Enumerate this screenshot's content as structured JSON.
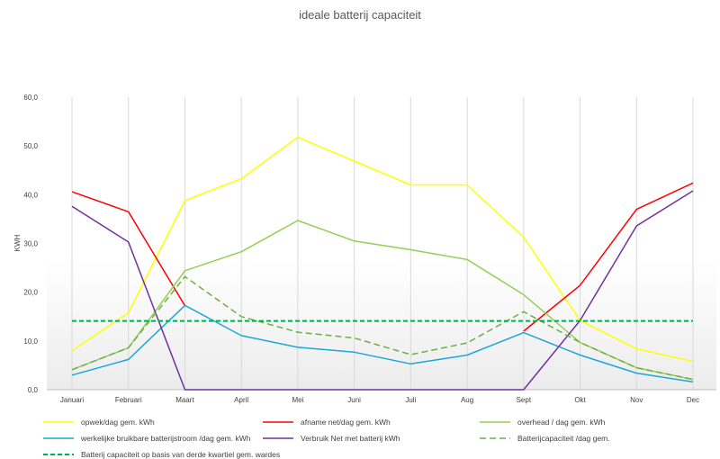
{
  "chart_data": {
    "type": "line",
    "title": "ideale batterij capaciteit",
    "xlabel": "",
    "ylabel": "KWH",
    "ylim": [
      0,
      60
    ],
    "y_ticks": [
      "0,0",
      "10,0",
      "20,0",
      "30,0",
      "40,0",
      "50,0",
      "60,0"
    ],
    "categories": [
      "Januari",
      "Februari",
      "Maart",
      "April",
      "Mei",
      "Juni",
      "Juli",
      "Aug",
      "Sept",
      "Okt",
      "Nov",
      "Dec"
    ],
    "series": [
      {
        "name": "opwek/dag gem. kWh",
        "color": "#ffff00",
        "dash": "solid",
        "values": [
          8.0,
          15.8,
          38.8,
          43.3,
          51.8,
          46.9,
          42.0,
          42.0,
          31.3,
          14.2,
          8.4,
          5.8
        ]
      },
      {
        "name": "afname net/dag gem. kWh",
        "color": "#ff0000",
        "dash": "solid",
        "values": [
          40.6,
          36.5,
          17.2,
          null,
          null,
          null,
          null,
          null,
          12.0,
          21.4,
          37.0,
          42.4
        ]
      },
      {
        "name": "overhead / dag gem.  kWh",
        "color": "#92d050",
        "dash": "solid",
        "values": [
          4.1,
          8.6,
          24.4,
          28.3,
          34.7,
          30.5,
          28.7,
          26.7,
          19.5,
          9.7,
          4.5,
          2.1
        ]
      },
      {
        "name": "werkelijke bruikbare batterijstroom /dag gem.  kWh",
        "color": "#1aa7d8",
        "dash": "solid",
        "values": [
          3.0,
          6.2,
          17.3,
          11.1,
          8.7,
          7.7,
          5.3,
          7.1,
          11.7,
          7.1,
          3.4,
          1.6
        ]
      },
      {
        "name": "Verbruik Net met batterij kWh",
        "color": "#7030a0",
        "dash": "solid",
        "values": [
          37.6,
          30.3,
          0.0,
          0.0,
          0.0,
          0.0,
          0.0,
          0.0,
          0.0,
          14.2,
          33.6,
          40.8
        ]
      },
      {
        "name": "Batterijcapaciteit /dag gem.",
        "color": "#70ad47",
        "dash": "dashed",
        "values": [
          4.1,
          8.6,
          23.2,
          15.0,
          11.8,
          10.6,
          7.2,
          9.6,
          16.0,
          9.7,
          4.5,
          2.1
        ]
      },
      {
        "name": "Batterij capaciteit op basis van derde kwartiel gem. wardes",
        "color": "#00b050",
        "dash": "dashed-bold",
        "values": [
          14.1,
          14.1,
          14.1,
          14.1,
          14.1,
          14.1,
          14.1,
          14.1,
          14.1,
          14.1,
          14.1,
          14.1
        ]
      }
    ],
    "legend_position": "bottom",
    "grid": "vertical"
  }
}
